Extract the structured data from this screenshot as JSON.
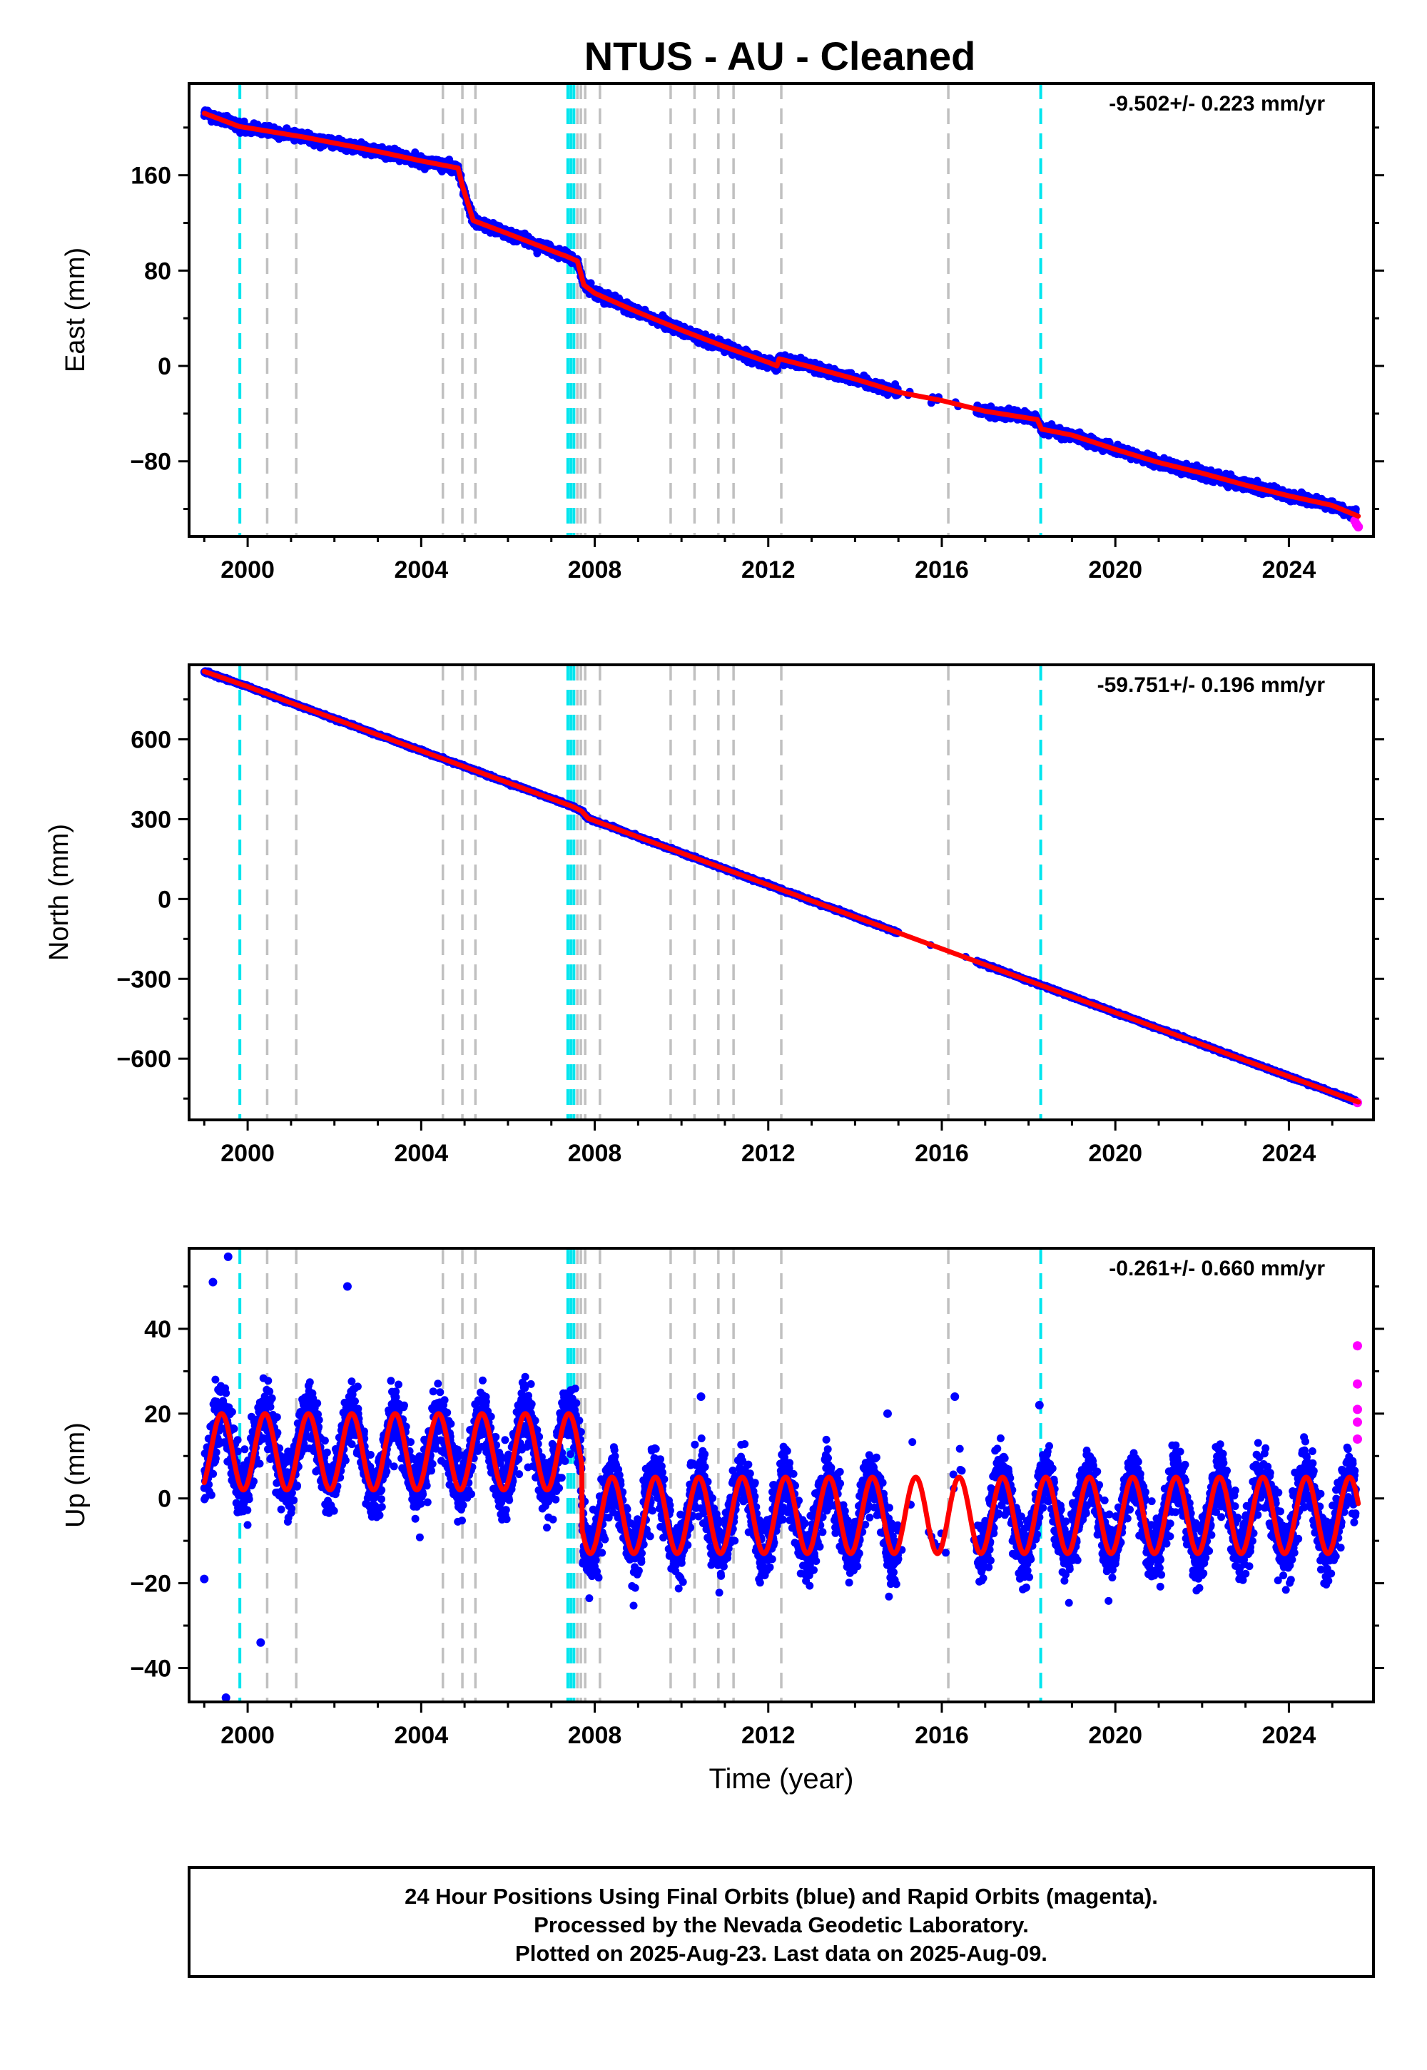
{
  "figure": {
    "title": "NTUS  - AU - Cleaned",
    "footer": [
      "24 Hour Positions Using Final Orbits (blue) and Rapid Orbits (magenta).",
      "Processed by the Nevada Geodetic Laboratory.",
      "Plotted on 2025-Aug-23. Last data on 2025-Aug-09."
    ],
    "colors": {
      "final_orbits": "#0000ff",
      "rapid_orbits": "#ff00ff",
      "model_fit": "#ff0000",
      "equipment_change": "#00e5ee",
      "earthquake": "#c0c0c0"
    }
  },
  "chart_data": [
    {
      "type": "scatter",
      "name": "east",
      "ylabel": "East (mm)",
      "xlabel": "",
      "xlim": [
        1998.65,
        2025.95
      ],
      "ylim": [
        -143,
        237
      ],
      "yticks": [
        -80,
        0,
        80,
        160
      ],
      "xticks": [
        2000,
        2004,
        2008,
        2012,
        2016,
        2020,
        2024
      ],
      "rate_label": "-9.502+/- 0.223 mm/yr",
      "fit_points": [
        [
          1999.0,
          212
        ],
        [
          1999.8,
          201
        ],
        [
          2000.8,
          195
        ],
        [
          2001.3,
          192
        ],
        [
          2002.0,
          187
        ],
        [
          2003.0,
          180
        ],
        [
          2004.0,
          172
        ],
        [
          2004.85,
          166
        ],
        [
          2004.95,
          151
        ],
        [
          2005.2,
          122
        ],
        [
          2006.0,
          111
        ],
        [
          2007.2,
          94
        ],
        [
          2007.35,
          92
        ],
        [
          2007.6,
          88
        ],
        [
          2007.75,
          68
        ],
        [
          2008.0,
          61
        ],
        [
          2009.0,
          45
        ],
        [
          2010.0,
          30
        ],
        [
          2011.0,
          16
        ],
        [
          2012.0,
          3
        ],
        [
          2012.2,
          0
        ],
        [
          2012.25,
          6
        ],
        [
          2013.0,
          -1
        ],
        [
          2014.0,
          -11
        ],
        [
          2015.0,
          -22
        ],
        [
          2016.0,
          -29
        ],
        [
          2017.0,
          -38
        ],
        [
          2018.2,
          -45
        ],
        [
          2018.3,
          -53
        ],
        [
          2019.0,
          -58
        ],
        [
          2020.0,
          -70
        ],
        [
          2021.0,
          -81
        ],
        [
          2022.0,
          -90
        ],
        [
          2023.0,
          -100
        ],
        [
          2024.0,
          -109
        ],
        [
          2025.0,
          -117
        ],
        [
          2025.6,
          -126
        ]
      ],
      "rapid_points": [
        [
          2025.52,
          -130
        ],
        [
          2025.56,
          -133
        ],
        [
          2025.6,
          -135
        ]
      ],
      "equipment_changes": [
        1999.82,
        2007.38,
        2007.45,
        2007.52,
        2018.28
      ],
      "earthquakes": [
        2000.45,
        2001.12,
        2004.5,
        2004.95,
        2005.25,
        2007.6,
        2007.68,
        2007.78,
        2008.12,
        2009.75,
        2010.3,
        2010.85,
        2011.2,
        2012.3,
        2016.15
      ]
    },
    {
      "type": "scatter",
      "name": "north",
      "ylabel": "North (mm)",
      "xlabel": "",
      "xlim": [
        1998.65,
        2025.95
      ],
      "ylim": [
        -830,
        880
      ],
      "yticks": [
        -600,
        -300,
        0,
        300,
        600
      ],
      "xticks": [
        2000,
        2004,
        2008,
        2012,
        2016,
        2020,
        2024
      ],
      "rate_label": "-59.751+/- 0.196 mm/yr",
      "fit_points": [
        [
          1999.0,
          855
        ],
        [
          2000.0,
          798
        ],
        [
          2001.0,
          737
        ],
        [
          2002.0,
          677
        ],
        [
          2003.0,
          617
        ],
        [
          2004.0,
          557
        ],
        [
          2005.0,
          497
        ],
        [
          2006.0,
          437
        ],
        [
          2007.0,
          377
        ],
        [
          2007.5,
          347
        ],
        [
          2007.7,
          330
        ],
        [
          2007.85,
          303
        ],
        [
          2009.0,
          233
        ],
        [
          2010.0,
          173
        ],
        [
          2011.0,
          113
        ],
        [
          2012.0,
          53
        ],
        [
          2013.0,
          -7
        ],
        [
          2014.0,
          -67
        ],
        [
          2015.0,
          -127
        ],
        [
          2016.0,
          -187
        ],
        [
          2017.0,
          -247
        ],
        [
          2018.25,
          -322
        ],
        [
          2019.0,
          -367
        ],
        [
          2020.0,
          -427
        ],
        [
          2021.0,
          -487
        ],
        [
          2022.0,
          -547
        ],
        [
          2023.0,
          -607
        ],
        [
          2024.0,
          -667
        ],
        [
          2025.0,
          -727
        ],
        [
          2025.6,
          -763
        ]
      ],
      "rapid_points": [
        [
          2025.58,
          -765
        ]
      ],
      "equipment_changes": [
        1999.82,
        2007.38,
        2007.45,
        2007.52,
        2018.28
      ],
      "earthquakes": [
        2000.45,
        2001.12,
        2004.5,
        2004.95,
        2005.25,
        2007.6,
        2007.68,
        2007.78,
        2008.12,
        2009.75,
        2010.3,
        2010.85,
        2011.2,
        2012.3,
        2016.15
      ]
    },
    {
      "type": "scatter",
      "name": "up",
      "ylabel": "Up (mm)",
      "xlabel": "Time (year)",
      "xlim": [
        1998.65,
        2025.95
      ],
      "ylim": [
        -48,
        59
      ],
      "yticks": [
        -40,
        -20,
        0,
        20,
        40
      ],
      "xticks": [
        2000,
        2004,
        2008,
        2012,
        2016,
        2020,
        2024
      ],
      "rate_label": "-0.261+/- 0.660 mm/yr",
      "seasonal_model": {
        "amplitude_mm": 9,
        "phase_peak_year_fraction": 0.4,
        "segments": [
          {
            "start": 1999.0,
            "end": 2007.7,
            "offset_mm": 11
          },
          {
            "start": 2007.7,
            "end": 2025.6,
            "offset_mm": -4
          }
        ]
      },
      "rapid_points": [
        [
          2025.58,
          36
        ],
        [
          2025.58,
          27
        ],
        [
          2025.58,
          21
        ],
        [
          2025.58,
          18
        ],
        [
          2025.58,
          14
        ]
      ],
      "outliers": [
        [
          1999.0,
          -19
        ],
        [
          1999.5,
          -47
        ],
        [
          1999.2,
          51
        ],
        [
          1999.55,
          57
        ],
        [
          2000.3,
          -34
        ],
        [
          2002.3,
          50
        ],
        [
          2010.45,
          24
        ],
        [
          2014.75,
          20
        ],
        [
          2016.3,
          24
        ],
        [
          2018.25,
          22
        ]
      ],
      "equipment_changes": [
        1999.82,
        2007.38,
        2007.45,
        2007.52,
        2018.28
      ],
      "earthquakes": [
        2000.45,
        2001.12,
        2004.5,
        2004.95,
        2005.25,
        2007.6,
        2007.68,
        2007.78,
        2008.12,
        2009.75,
        2010.3,
        2010.85,
        2011.2,
        2012.3,
        2016.15
      ]
    }
  ]
}
